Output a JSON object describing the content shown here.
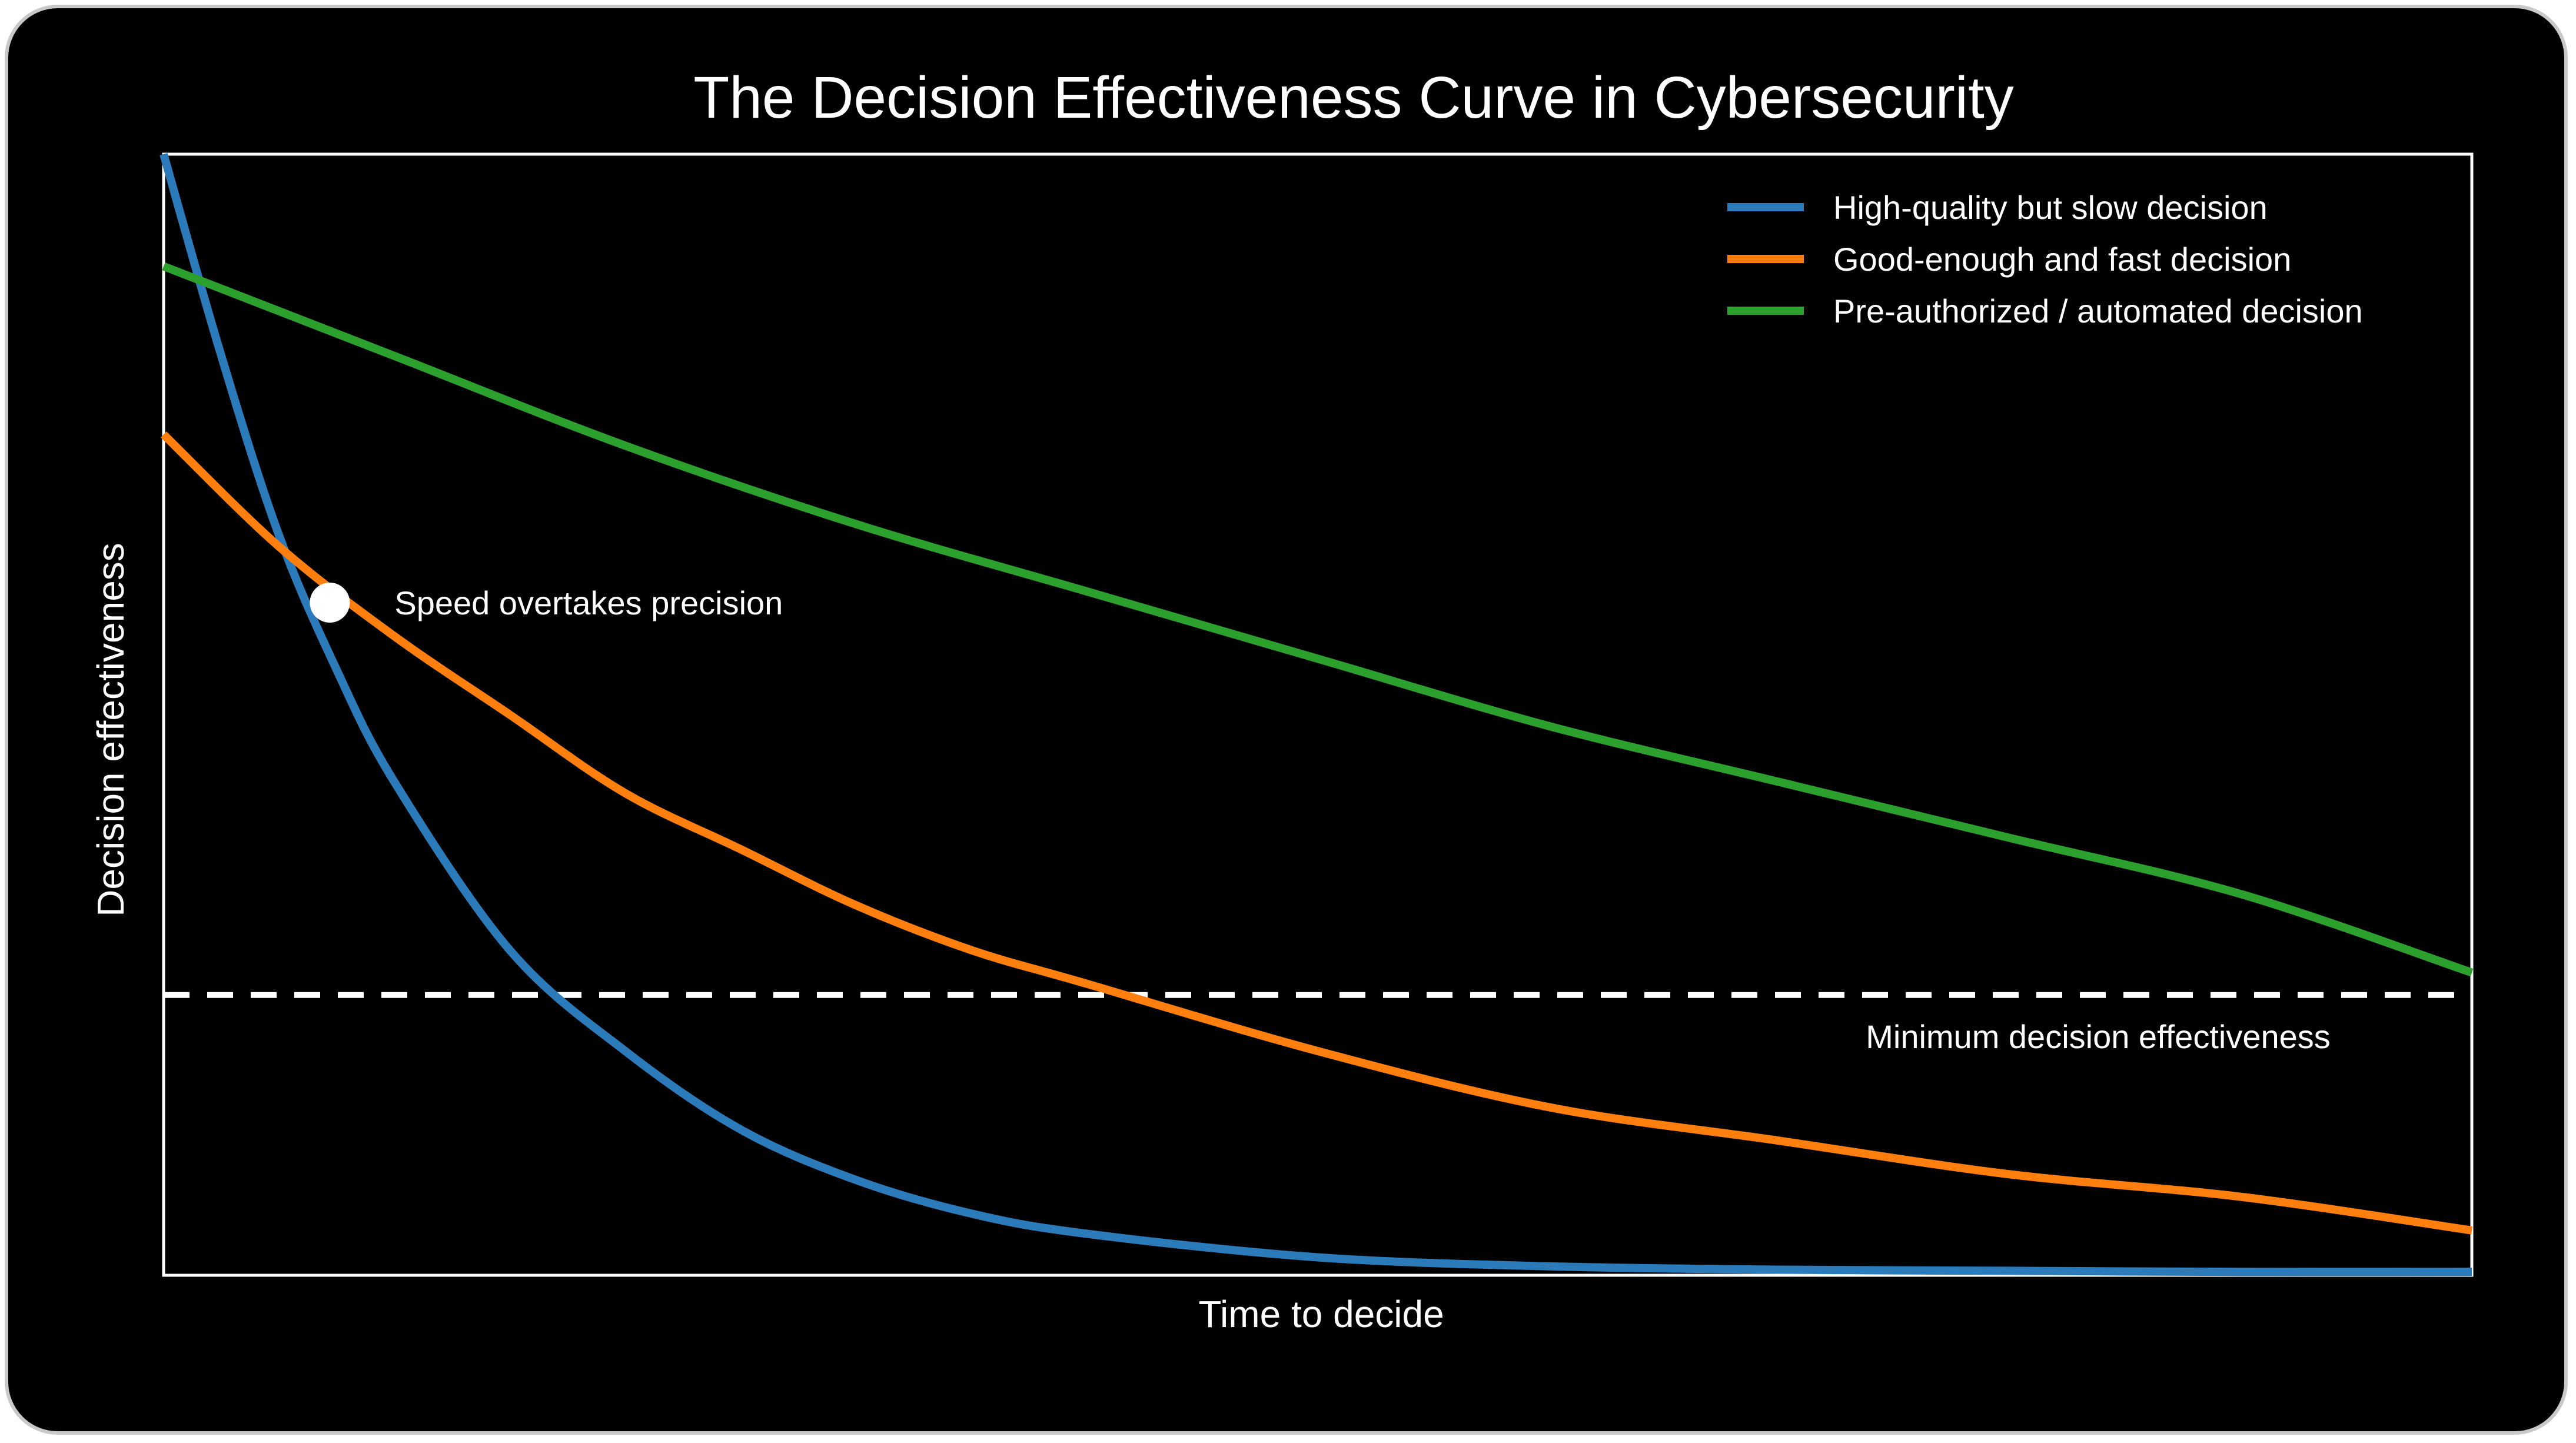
{
  "chart_data": {
    "type": "line",
    "title": "The Decision Effectiveness Curve in Cybersecurity",
    "xlabel": "Time to decide",
    "ylabel": "Decision effectiveness",
    "xlim": [
      0,
      10
    ],
    "ylim": [
      0,
      1
    ],
    "grid": false,
    "axis_ticks_shown": false,
    "legend_position": "top-right",
    "series": [
      {
        "name": "High-quality but slow decision",
        "color": "#2b7bba",
        "x": [
          0,
          0.25,
          0.5,
          0.75,
          1,
          1.5,
          2,
          2.5,
          3,
          3.5,
          4,
          5,
          6,
          7,
          8,
          9,
          10
        ],
        "y": [
          1.0,
          0.82,
          0.66,
          0.54,
          0.44,
          0.29,
          0.2,
          0.13,
          0.085,
          0.055,
          0.037,
          0.016,
          0.008,
          0.005,
          0.004,
          0.003,
          0.003
        ]
      },
      {
        "name": "Good-enough and fast decision",
        "color": "#ff7f0e",
        "x": [
          0,
          0.5,
          1,
          1.5,
          2,
          2.5,
          3,
          3.5,
          4,
          5,
          6,
          7,
          8,
          9,
          10
        ],
        "y": [
          0.75,
          0.65,
          0.57,
          0.5,
          0.43,
          0.38,
          0.33,
          0.29,
          0.26,
          0.2,
          0.15,
          0.12,
          0.09,
          0.07,
          0.04
        ]
      },
      {
        "name": "Pre-authorized / automated decision",
        "color": "#2ca02c",
        "x": [
          0,
          1,
          2,
          3,
          4,
          5,
          6,
          7,
          8,
          9,
          10
        ],
        "y": [
          0.9,
          0.82,
          0.74,
          0.67,
          0.61,
          0.55,
          0.49,
          0.44,
          0.39,
          0.34,
          0.27
        ]
      }
    ],
    "reference_line": {
      "label": "Minimum decision effectiveness",
      "y": 0.25,
      "style": "dashed",
      "color": "#ffffff"
    },
    "annotations": [
      {
        "text": "Speed overtakes precision",
        "x": 0.72,
        "y": 0.6,
        "marker": "circle",
        "marker_color": "#ffffff"
      }
    ]
  }
}
